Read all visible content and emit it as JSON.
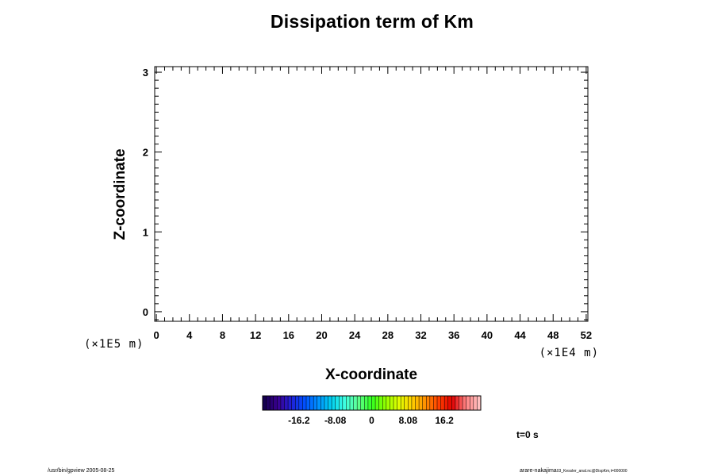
{
  "chart_data": {
    "type": "heatmap",
    "title": "Dissipation term of Km",
    "xlabel": "X-coordinate",
    "ylabel": "Z-coordinate",
    "x_unit": "(×1E4 m)",
    "y_unit": "(×1E5 m)",
    "xlim": [
      -0.2,
      52.2
    ],
    "ylim": [
      -0.12,
      3.07
    ],
    "x_ticks": [
      "0",
      "4",
      "8",
      "12",
      "16",
      "20",
      "24",
      "28",
      "32",
      "36",
      "40",
      "44",
      "48",
      "52"
    ],
    "y_ticks": [
      "0",
      "1",
      "2",
      "3"
    ],
    "x_minor_step": 1,
    "y_minor_step": 0.1,
    "values": [],
    "colorbar": {
      "min": -24.24,
      "max": 24.24,
      "levels": 60,
      "tick_labels": [
        "-16.2",
        "-8.08",
        "0",
        "8.08",
        "16.2"
      ],
      "tick_values": [
        -16.16,
        -8.08,
        0,
        8.08,
        16.16
      ],
      "colormap": [
        "#140050",
        "#3a0090",
        "#2020d8",
        "#0050ff",
        "#0090ff",
        "#00d0f0",
        "#40ffe0",
        "#60ff90",
        "#30ff20",
        "#90ff00",
        "#e0ff00",
        "#ffd000",
        "#ff9000",
        "#ff4000",
        "#e00000",
        "#ff8080",
        "#ffc0c0"
      ]
    }
  },
  "annotations": {
    "time": "t=0 s",
    "footer_left": "/usr/bin/gpview 2005-08-25",
    "footer_right_main": "arare-nakajima",
    "footer_right_small": "03_Kessler_anal.nc@DispKm,t=000000"
  }
}
